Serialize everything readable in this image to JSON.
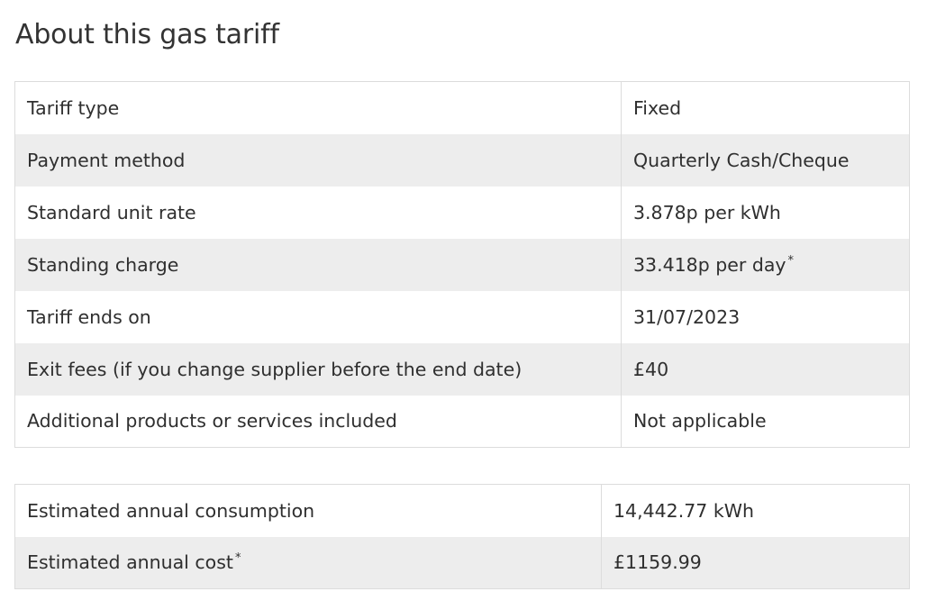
{
  "page_title": "About this gas tariff",
  "tariff_table": {
    "rows": [
      {
        "label": "Tariff type",
        "value": "Fixed",
        "value_note": ""
      },
      {
        "label": "Payment method",
        "value": "Quarterly Cash/Cheque",
        "value_note": ""
      },
      {
        "label": "Standard unit rate",
        "value": "3.878p per kWh",
        "value_note": ""
      },
      {
        "label": "Standing charge",
        "value": "33.418p per day",
        "value_note": "*"
      },
      {
        "label": "Tariff ends on",
        "value": "31/07/2023",
        "value_note": ""
      },
      {
        "label": "Exit fees (if you change supplier before the end date)",
        "value": "£40",
        "value_note": ""
      },
      {
        "label": "Additional products or services included",
        "value": "Not applicable",
        "value_note": ""
      }
    ]
  },
  "estimate_table": {
    "rows": [
      {
        "label": "Estimated annual consumption",
        "label_note": "",
        "value": "14,442.77 kWh"
      },
      {
        "label": "Estimated annual cost",
        "label_note": "*",
        "value": "£1159.99"
      }
    ]
  },
  "colors": {
    "shaded_row": "#ededed",
    "border": "#dcdcdc",
    "text": "#2f2f2f"
  }
}
